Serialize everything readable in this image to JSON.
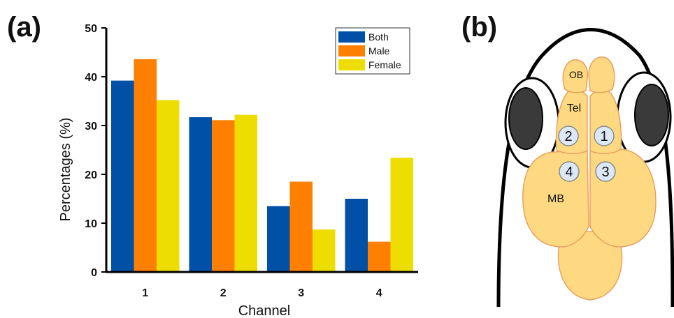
{
  "panels": {
    "a": {
      "label": "(a)"
    },
    "b": {
      "label": "(b)"
    }
  },
  "chart_data": {
    "type": "bar",
    "title": "",
    "xlabel": "Channel",
    "ylabel": "Percentages (%)",
    "categories": [
      "1",
      "2",
      "3",
      "4"
    ],
    "ylim": [
      0,
      50
    ],
    "yticks": [
      "0",
      "10",
      "20",
      "30",
      "40",
      "50"
    ],
    "series": [
      {
        "name": "Both",
        "color": "#0050A8",
        "values": [
          39.2,
          31.7,
          13.5,
          15.0
        ]
      },
      {
        "name": "Male",
        "color": "#FF7F00",
        "values": [
          43.6,
          31.1,
          18.5,
          6.2
        ]
      },
      {
        "name": "Female",
        "color": "#EEDD00",
        "values": [
          35.2,
          32.2,
          8.7,
          23.4
        ]
      }
    ],
    "legend_position": "top-right",
    "grid": false
  },
  "diagram": {
    "regions": {
      "ob": "OB",
      "tel": "Tel",
      "mb": "MB"
    },
    "channels": [
      "1",
      "2",
      "3",
      "4"
    ],
    "colors": {
      "brain": "#FFD982",
      "brain_outline": "#E8A060",
      "eye": "#3A3A3A",
      "marker": "#DCE8F5"
    }
  }
}
